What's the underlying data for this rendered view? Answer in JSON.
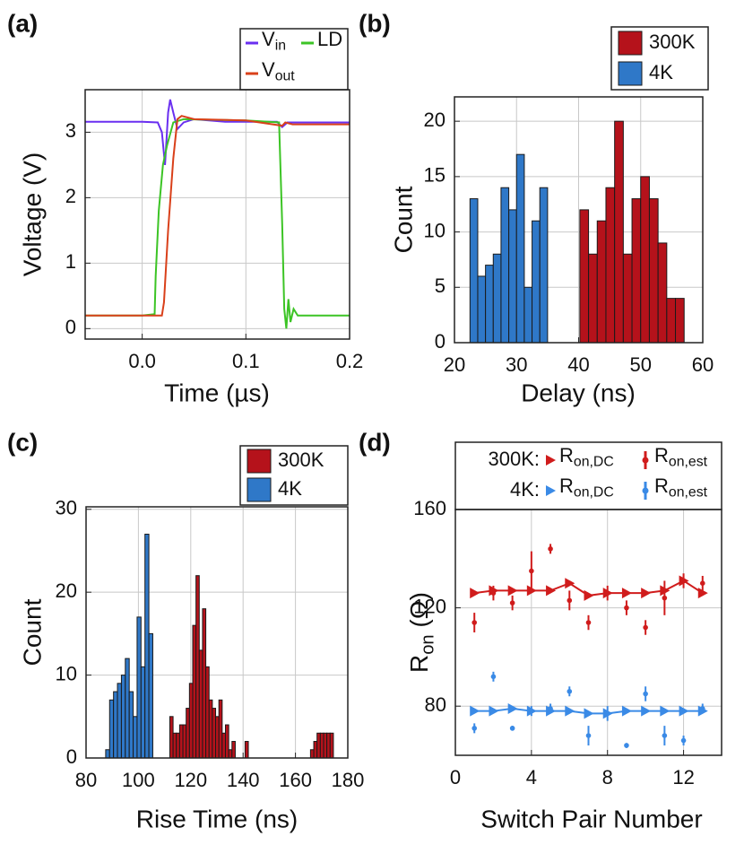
{
  "chart_data": [
    {
      "type": "line",
      "label": "(a)",
      "xlabel": "Time (µs)",
      "ylabel": "Voltage (V)",
      "xlim": [
        -0.055,
        0.2
      ],
      "xticks": [
        {
          "value": 0,
          "label": "0.0"
        },
        0.1,
        0.2
      ],
      "ylim": [
        -0.16,
        3.65
      ],
      "yticks": [
        0,
        1,
        2,
        3
      ],
      "grid": true,
      "series": [
        {
          "name": "Vin",
          "color": "#6a2ff0",
          "x": [
            -0.055,
            -0.03,
            0,
            0.015,
            0.019,
            0.022,
            0.025,
            0.027,
            0.03,
            0.034,
            0.04,
            0.05,
            0.08,
            0.13,
            0.135,
            0.14,
            0.2
          ],
          "values": [
            3.16,
            3.16,
            3.16,
            3.15,
            3.0,
            2.5,
            3.3,
            3.5,
            3.3,
            3.05,
            3.15,
            3.2,
            3.16,
            3.16,
            3.08,
            3.15,
            3.15
          ]
        },
        {
          "name": "LD",
          "color": "#3cc425",
          "x": [
            -0.055,
            0,
            0.012,
            0.013,
            0.016,
            0.02,
            0.024,
            0.03,
            0.04,
            0.1,
            0.132,
            0.135,
            0.137,
            0.139,
            0.141,
            0.143,
            0.146,
            0.15,
            0.2
          ],
          "values": [
            0.2,
            0.2,
            0.22,
            0.8,
            1.8,
            2.5,
            2.8,
            3.15,
            3.2,
            3.18,
            3.15,
            1.6,
            0.3,
            0.0,
            0.45,
            0.1,
            0.3,
            0.2,
            0.2
          ]
        },
        {
          "name": "Vout",
          "color": "#d9401a",
          "x": [
            -0.055,
            0,
            0.019,
            0.021,
            0.025,
            0.03,
            0.034,
            0.038,
            0.05,
            0.1,
            0.135,
            0.138,
            0.145,
            0.2
          ],
          "values": [
            0.2,
            0.2,
            0.2,
            0.4,
            1.5,
            2.6,
            3.2,
            3.25,
            3.2,
            3.18,
            3.1,
            3.15,
            3.12,
            3.12
          ]
        }
      ]
    },
    {
      "type": "histogram",
      "label": "(b)",
      "xlabel": "Delay (ns)",
      "ylabel": "Count",
      "xlim": [
        20,
        60
      ],
      "xticks": [
        20,
        30,
        40,
        50,
        60
      ],
      "ylim": [
        0,
        22.2
      ],
      "yticks": [
        0,
        5,
        10,
        15,
        20
      ],
      "grid": true,
      "series": [
        {
          "name": "300K",
          "color": "#b5121b",
          "bins": [
            40.2,
            41.6,
            43.0,
            44.4,
            45.8,
            47.2,
            48.6,
            50.0,
            51.4,
            52.8,
            54.2,
            55.6,
            57.0
          ],
          "values": [
            12,
            8,
            11,
            14,
            20,
            8,
            13,
            15,
            13,
            9,
            4,
            4
          ]
        },
        {
          "name": "4K",
          "color": "#2f78c8",
          "bins": [
            22.5,
            23.75,
            25.0,
            26.25,
            27.5,
            28.75,
            30.0,
            31.25,
            32.5,
            33.75,
            35.0
          ],
          "values": [
            13,
            6,
            7,
            8,
            14,
            12,
            17,
            5,
            11,
            14
          ]
        }
      ]
    },
    {
      "type": "histogram",
      "label": "(c)",
      "xlabel": "Rise Time (ns)",
      "ylabel": "Count",
      "xlim": [
        80,
        180
      ],
      "xticks": [
        80,
        100,
        120,
        140,
        160,
        180
      ],
      "ylim": [
        0,
        30.3
      ],
      "yticks": [
        0,
        10,
        20,
        30
      ],
      "grid": true,
      "series": [
        {
          "name": "300K",
          "color": "#b5121b",
          "bins": [
            112,
            113.25,
            114.5,
            115.75,
            117,
            118.25,
            119.5,
            120.75,
            122,
            123.25,
            124.5,
            125.75,
            127,
            128.25,
            129.5,
            130.75,
            132,
            133.25,
            134.5,
            135.75,
            137,
            138.25,
            139.5,
            140.75,
            142,
            143.25,
            144.5,
            145.75,
            147,
            148.25,
            149.5,
            150.75,
            152,
            153.25,
            154.5,
            155.75,
            157,
            158.25,
            159.5,
            160.75,
            162,
            163.25,
            164.5,
            165.75,
            167,
            168.25,
            169.5,
            170.75,
            172,
            173.25,
            174.5
          ],
          "values": [
            5,
            3,
            3,
            4,
            4,
            6,
            9,
            16,
            22,
            13,
            18,
            11,
            7,
            6,
            5,
            7,
            3,
            4,
            1,
            2,
            0,
            0,
            0,
            2,
            0,
            0,
            0,
            0,
            0,
            0,
            0,
            0,
            0,
            0,
            0,
            0,
            0,
            0,
            0,
            0,
            0,
            0,
            0,
            1,
            2,
            3,
            3,
            3,
            3,
            3
          ]
        },
        {
          "name": "4K",
          "color": "#2f78c8",
          "bins": [
            87.5,
            89,
            90.5,
            92,
            93.5,
            95,
            96.5,
            98,
            99.5,
            101,
            102.5,
            104,
            105.5
          ],
          "values": [
            1,
            7,
            8,
            9,
            10,
            12,
            8,
            5,
            17,
            11,
            27,
            15
          ]
        }
      ]
    },
    {
      "type": "errorbar",
      "label": "(d)",
      "xlabel": "Switch Pair Number",
      "ylabel": "Ron (Ω)",
      "xlim": [
        0,
        14
      ],
      "xticks": [
        0,
        4,
        8,
        12
      ],
      "ylim": [
        60,
        160
      ],
      "yticks": [
        80,
        120,
        160
      ],
      "grid": true,
      "groups": [
        {
          "label": "300K:",
          "color": "#d01c1c",
          "series": [
            {
              "name": "Ron,DC",
              "marker": "triangle",
              "x": [
                1,
                2,
                3,
                4,
                5,
                6,
                7,
                8,
                9,
                10,
                11,
                12,
                13
              ],
              "values": [
                126,
                127,
                127,
                127,
                127,
                130,
                125,
                126,
                126,
                126,
                127,
                131,
                126
              ]
            },
            {
              "name": "Ron,est",
              "marker": "circle",
              "x": [
                1,
                2,
                3,
                4,
                5,
                6,
                7,
                8,
                9,
                10,
                11,
                12,
                13
              ],
              "values": [
                114,
                126,
                122,
                135,
                144,
                123,
                114,
                126,
                120,
                112,
                124,
                131,
                130
              ],
              "errors": [
                4,
                3,
                3,
                8,
                2,
                4,
                3,
                3,
                3,
                3,
                7,
                3,
                3
              ]
            }
          ]
        },
        {
          "label": "4K:",
          "color": "#3a8ae6",
          "series": [
            {
              "name": "Ron,DC",
              "marker": "triangle",
              "x": [
                1,
                2,
                3,
                4,
                5,
                6,
                7,
                8,
                9,
                10,
                11,
                12,
                13
              ],
              "values": [
                78,
                78,
                79,
                78,
                78,
                78,
                77,
                77,
                78,
                78,
                78,
                78,
                78
              ]
            },
            {
              "name": "Ron,est",
              "marker": "circle",
              "x": [
                1,
                2,
                3,
                4,
                5,
                6,
                7,
                8,
                9,
                10,
                11,
                12,
                13
              ],
              "values": [
                71,
                92,
                71,
                78,
                79,
                86,
                68,
                77,
                64,
                85,
                68,
                66,
                79
              ],
              "errors": [
                2,
                2,
                1,
                2,
                2,
                2,
                4,
                3,
                1,
                3,
                4,
                2,
                2
              ]
            }
          ]
        }
      ]
    }
  ]
}
